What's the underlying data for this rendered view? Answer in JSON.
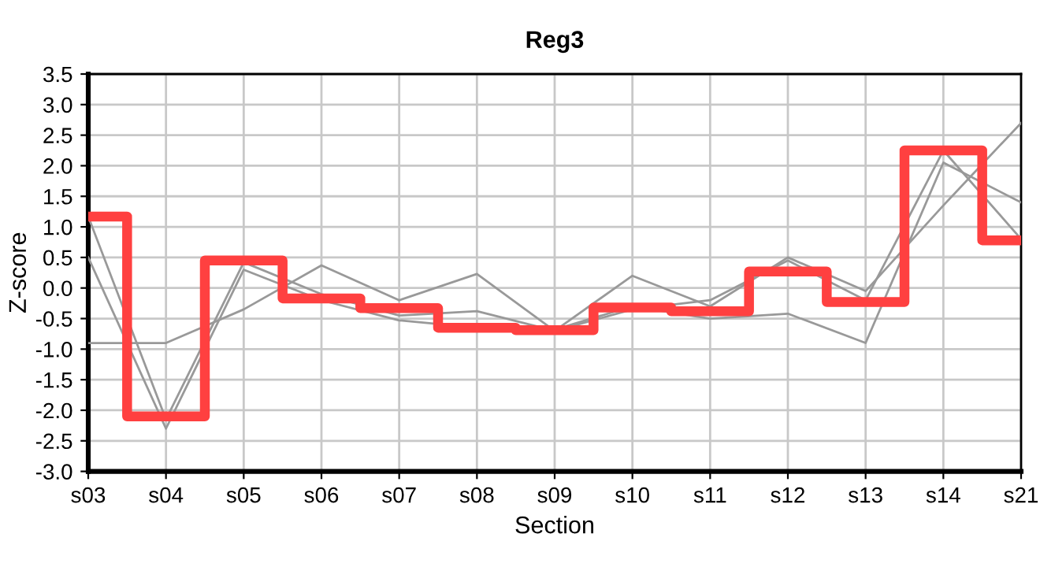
{
  "chart_data": {
    "type": "line",
    "title": "Reg3",
    "xlabel": "Section",
    "ylabel": "Z-score",
    "categories": [
      "s03",
      "s04",
      "s05",
      "s06",
      "s07",
      "s08",
      "s09",
      "s10",
      "s11",
      "s12",
      "s13",
      "s14",
      "s21"
    ],
    "series": [
      {
        "color": "#999999",
        "values": [
          -0.9,
          -0.9,
          -0.35,
          0.37,
          -0.2,
          0.23,
          -0.7,
          0.2,
          -0.3,
          0.5,
          -0.05,
          1.35,
          2.7
        ]
      },
      {
        "color": "#999999",
        "values": [
          1.17,
          -2.15,
          0.42,
          -0.1,
          -0.45,
          -0.38,
          -0.7,
          -0.35,
          -0.2,
          0.45,
          -0.2,
          2.25,
          0.8
        ]
      },
      {
        "color": "#999999",
        "values": [
          0.5,
          -2.3,
          0.3,
          -0.2,
          -0.53,
          -0.65,
          -0.68,
          -0.3,
          -0.5,
          -0.42,
          -0.9,
          2.05,
          1.4
        ]
      },
      {
        "type": "step",
        "color": "#ff4040",
        "values": [
          1.17,
          -2.1,
          0.45,
          -0.17,
          -0.33,
          -0.65,
          -0.69,
          -0.32,
          -0.38,
          0.27,
          -0.23,
          2.25,
          0.78
        ]
      }
    ],
    "ylim": [
      -3.0,
      3.5
    ],
    "yticks": [
      {
        "value": -3.0,
        "label": "-3.0"
      },
      {
        "value": -2.5,
        "label": "-2.5"
      },
      {
        "value": -2.0,
        "label": "-2.0"
      },
      {
        "value": -1.5,
        "label": "-1.5"
      },
      {
        "value": -1.0,
        "label": "-1.0"
      },
      {
        "value": -0.5,
        "label": "-0.5"
      },
      {
        "value": 0.0,
        "label": "0.0"
      },
      {
        "value": 0.5,
        "label": "0.5"
      },
      {
        "value": 1.0,
        "label": "1.0"
      },
      {
        "value": 1.5,
        "label": "1.5"
      },
      {
        "value": 2.0,
        "label": "2.0"
      },
      {
        "value": 2.5,
        "label": "2.5"
      },
      {
        "value": 3.0,
        "label": "3.0"
      },
      {
        "value": 3.5,
        "label": "3.5"
      }
    ],
    "grid": true,
    "legend": false
  }
}
